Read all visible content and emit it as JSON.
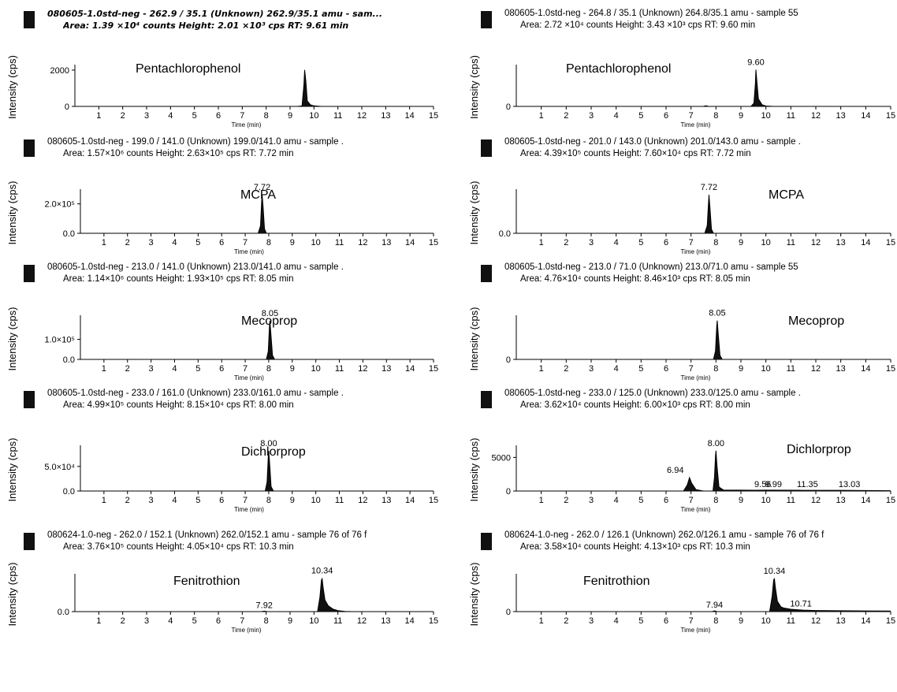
{
  "panels": [
    {
      "id": "p1",
      "bold": true,
      "header1": "080605-1.0std-neg - 262.9 / 35.1 (Unknown) 262.9/35.1 amu - sam...",
      "header2": "Area: 1.39 ×10⁴ counts  Height: 2.01 ×10³ cps  RT: 9.61 min",
      "compound": "Pentachlorophenol",
      "ylabel": "Intensity (cps)",
      "xlabel": "Time (min)",
      "yticks": [
        "2000",
        "0"
      ],
      "peak_labels": []
    },
    {
      "id": "p2",
      "bold": false,
      "header1": "080605-1.0std-neg - 264.8 / 35.1 (Unknown) 264.8/35.1 amu - sample 55",
      "header2": "Area: 2.72 ×10⁴ counts  Height: 3.43 ×10³ cps  RT: 9.60 min",
      "compound": "Pentachlorophenol",
      "ylabel": "Intensity (cps)",
      "xlabel": "Time (min)",
      "yticks": [
        "0"
      ],
      "peak_labels": [
        "9.60"
      ]
    },
    {
      "id": "p3",
      "bold": false,
      "header1": "080605-1.0std-neg - 199.0 / 141.0 (Unknown) 199.0/141.0 amu - sample .",
      "header2": "Area: 1.57×10⁶ counts  Height: 2.63×10⁵ cps  RT: 7.72 min",
      "compound": "MCPA",
      "ylabel": "Intensity (cps)",
      "xlabel": "Time (min)",
      "yticks": [
        "2.0×10⁵",
        "0.0"
      ],
      "peak_labels": [
        "7.72"
      ]
    },
    {
      "id": "p4",
      "bold": false,
      "header1": "080605-1.0std-neg - 201.0 / 143.0 (Unknown) 201.0/143.0 amu - sample .",
      "header2": "Area: 4.39×10⁵ counts  Height: 7.60×10⁴ cps  RT: 7.72 min",
      "compound": "MCPA",
      "ylabel": "Intensity (cps)",
      "xlabel": "Time (min)",
      "yticks": [
        "0.0"
      ],
      "peak_labels": [
        "7.72"
      ]
    },
    {
      "id": "p5",
      "bold": false,
      "header1": "080605-1.0std-neg - 213.0 / 141.0 (Unknown) 213.0/141.0 amu - sample .",
      "header2": "Area: 1.14×10⁶ counts  Height: 1.93×10⁵ cps  RT: 8.05 min",
      "compound": "Mecoprop",
      "ylabel": "Intensity (cps)",
      "xlabel": "Time (min)",
      "yticks": [
        "1.0×10⁵",
        "0.0"
      ],
      "peak_labels": [
        "8.05"
      ]
    },
    {
      "id": "p6",
      "bold": false,
      "header1": "080605-1.0std-neg - 213.0 / 71.0 (Unknown) 213.0/71.0 amu - sample 55",
      "header2": "Area: 4.76×10⁴ counts  Height: 8.46×10³ cps  RT: 8.05 min",
      "compound": "Mecoprop",
      "ylabel": "Intensity (cps)",
      "xlabel": "Time (min)",
      "yticks": [
        "0"
      ],
      "peak_labels": [
        "8.05"
      ]
    },
    {
      "id": "p7",
      "bold": false,
      "header1": "080605-1.0std-neg - 233.0 / 161.0 (Unknown) 233.0/161.0 amu - sample .",
      "header2": "Area: 4.99×10⁵ counts  Height: 8.15×10⁴ cps  RT: 8.00 min",
      "compound": "Dichlorprop",
      "ylabel": "Intensity (cps)",
      "xlabel": "Time (min)",
      "yticks": [
        "5.0×10⁴",
        "0.0"
      ],
      "peak_labels": [
        "8.00"
      ]
    },
    {
      "id": "p8",
      "bold": false,
      "header1": "080605-1.0std-neg - 233.0 / 125.0 (Unknown) 233.0/125.0 amu - sample .",
      "header2": "Area: 3.62×10⁴ counts  Height: 6.00×10³ cps  RT: 8.00 min",
      "compound": "Dichlorprop",
      "ylabel": "Intensity (cps)",
      "xlabel": "Time (min)",
      "yticks": [
        "5000",
        "0"
      ],
      "peak_labels": [
        "8.00",
        "6.94",
        "9.56",
        "9.99",
        "11.35",
        "13.03"
      ]
    },
    {
      "id": "p9",
      "bold": false,
      "header1": "080624-1.0-neg - 262.0 / 152.1 (Unknown) 262.0/152.1 amu - sample 76 of 76 f",
      "header2": "Area: 3.76×10⁵ counts  Height: 4.05×10⁴ cps  RT: 10.3 min",
      "compound": "Fenitrothion",
      "ylabel": "Intensity (cps)",
      "xlabel": "Time (min)",
      "yticks": [
        "0.0"
      ],
      "peak_labels": [
        "10.34",
        "7.92"
      ]
    },
    {
      "id": "p10",
      "bold": false,
      "header1": "080624-1.0-neg - 262.0 / 126.1 (Unknown) 262.0/126.1 amu - sample 76 of 76 f",
      "header2": "Area: 3.58×10⁴ counts  Height: 4.13×10³ cps  RT: 10.3 min",
      "compound": "Fenitrothion",
      "ylabel": "Intensity (cps)",
      "xlabel": "Time (min)",
      "yticks": [
        "0"
      ],
      "peak_labels": [
        "10.34",
        "7.94",
        "10.71"
      ]
    }
  ],
  "xtick_labels": [
    "1",
    "2",
    "3",
    "4",
    "5",
    "6",
    "7",
    "8",
    "9",
    "10",
    "11",
    "12",
    "13",
    "14",
    "15"
  ],
  "chart_data": [
    {
      "type": "line",
      "xlabel": "Time (min)",
      "ylabel": "Intensity (cps)",
      "xlim": [
        0,
        15
      ],
      "ylim": [
        0,
        2300
      ],
      "series": [
        {
          "values": [
            [
              0,
              0
            ],
            [
              9.3,
              0
            ],
            [
              9.5,
              30
            ],
            [
              9.58,
              1200
            ],
            [
              9.61,
              2010
            ],
            [
              9.66,
              1400
            ],
            [
              9.72,
              300
            ],
            [
              9.85,
              90
            ],
            [
              10.0,
              30
            ],
            [
              10.3,
              0
            ],
            [
              15,
              0
            ]
          ]
        }
      ]
    },
    {
      "type": "line",
      "xlabel": "Time (min)",
      "ylabel": "Intensity (cps)",
      "xlim": [
        0,
        15
      ],
      "ylim": [
        0,
        3900
      ],
      "series": [
        {
          "values": [
            [
              0,
              0
            ],
            [
              7.5,
              0
            ],
            [
              7.6,
              60
            ],
            [
              7.7,
              0
            ],
            [
              9.4,
              0
            ],
            [
              9.52,
              300
            ],
            [
              9.58,
              2200
            ],
            [
              9.6,
              3430
            ],
            [
              9.64,
              2300
            ],
            [
              9.7,
              700
            ],
            [
              9.85,
              150
            ],
            [
              10.0,
              40
            ],
            [
              10.3,
              0
            ],
            [
              15,
              0
            ]
          ]
        }
      ]
    },
    {
      "type": "line",
      "xlabel": "Time (min)",
      "ylabel": "Intensity (cps)",
      "xlim": [
        0,
        15
      ],
      "ylim": [
        0,
        300000
      ],
      "series": [
        {
          "values": [
            [
              0,
              0
            ],
            [
              7.55,
              0
            ],
            [
              7.65,
              50000
            ],
            [
              7.7,
              220000
            ],
            [
              7.72,
              263000
            ],
            [
              7.76,
              180000
            ],
            [
              7.82,
              30000
            ],
            [
              7.9,
              0
            ],
            [
              15,
              0
            ]
          ]
        }
      ]
    },
    {
      "type": "line",
      "xlabel": "Time (min)",
      "ylabel": "Intensity (cps)",
      "xlim": [
        0,
        15
      ],
      "ylim": [
        0,
        87000
      ],
      "series": [
        {
          "values": [
            [
              0,
              0
            ],
            [
              7.55,
              0
            ],
            [
              7.65,
              15000
            ],
            [
              7.7,
              60000
            ],
            [
              7.72,
              76000
            ],
            [
              7.76,
              50000
            ],
            [
              7.82,
              8000
            ],
            [
              7.9,
              0
            ],
            [
              15,
              0
            ]
          ]
        }
      ]
    },
    {
      "type": "line",
      "xlabel": "Time (min)",
      "ylabel": "Intensity (cps)",
      "xlim": [
        0,
        15
      ],
      "ylim": [
        0,
        220000
      ],
      "series": [
        {
          "values": [
            [
              0,
              0
            ],
            [
              7.9,
              0
            ],
            [
              7.98,
              40000
            ],
            [
              8.03,
              165000
            ],
            [
              8.05,
              193000
            ],
            [
              8.09,
              130000
            ],
            [
              8.16,
              20000
            ],
            [
              8.25,
              0
            ],
            [
              15,
              0
            ]
          ]
        }
      ]
    },
    {
      "type": "line",
      "xlabel": "Time (min)",
      "ylabel": "Intensity (cps)",
      "xlim": [
        0,
        15
      ],
      "ylim": [
        0,
        9600
      ],
      "series": [
        {
          "values": [
            [
              0,
              0
            ],
            [
              7.9,
              0
            ],
            [
              7.98,
              1800
            ],
            [
              8.03,
              7200
            ],
            [
              8.05,
              8460
            ],
            [
              8.09,
              5600
            ],
            [
              8.16,
              900
            ],
            [
              8.25,
              0
            ],
            [
              15,
              0
            ]
          ]
        }
      ]
    },
    {
      "type": "line",
      "xlabel": "Time (min)",
      "ylabel": "Intensity (cps)",
      "xlim": [
        0,
        15
      ],
      "ylim": [
        0,
        93000
      ],
      "series": [
        {
          "values": [
            [
              0,
              0
            ],
            [
              7.85,
              0
            ],
            [
              7.93,
              18000
            ],
            [
              7.98,
              70000
            ],
            [
              8.0,
              81500
            ],
            [
              8.04,
              55000
            ],
            [
              8.1,
              9000
            ],
            [
              8.2,
              0
            ],
            [
              15,
              0
            ]
          ]
        }
      ]
    },
    {
      "type": "line",
      "xlabel": "Time (min)",
      "ylabel": "Intensity (cps)",
      "xlim": [
        0,
        15
      ],
      "ylim": [
        0,
        6800
      ],
      "series": [
        {
          "values": [
            [
              0,
              0
            ],
            [
              6.7,
              0
            ],
            [
              6.85,
              900
            ],
            [
              6.94,
              2000
            ],
            [
              7.02,
              1200
            ],
            [
              7.2,
              200
            ],
            [
              7.5,
              0
            ],
            [
              7.88,
              0
            ],
            [
              7.94,
              2000
            ],
            [
              7.98,
              5200
            ],
            [
              8.0,
              6000
            ],
            [
              8.04,
              3800
            ],
            [
              8.12,
              600
            ],
            [
              8.3,
              150
            ],
            [
              9.56,
              120
            ],
            [
              9.99,
              130
            ],
            [
              11.35,
              110
            ],
            [
              13.03,
              100
            ],
            [
              14.5,
              60
            ],
            [
              15,
              40
            ]
          ]
        }
      ]
    },
    {
      "type": "line",
      "xlabel": "Time (min)",
      "ylabel": "Intensity (cps)",
      "xlim": [
        0,
        15
      ],
      "ylim": [
        0,
        46000
      ],
      "series": [
        {
          "values": [
            [
              0,
              0
            ],
            [
              7.8,
              0
            ],
            [
              7.92,
              600
            ],
            [
              8.05,
              0
            ],
            [
              10.15,
              0
            ],
            [
              10.25,
              18000
            ],
            [
              10.31,
              38000
            ],
            [
              10.34,
              40500
            ],
            [
              10.38,
              30000
            ],
            [
              10.46,
              14000
            ],
            [
              10.6,
              7000
            ],
            [
              10.8,
              3000
            ],
            [
              11.0,
              1200
            ],
            [
              11.3,
              300
            ],
            [
              11.6,
              0
            ],
            [
              15,
              0
            ]
          ]
        }
      ]
    },
    {
      "type": "line",
      "xlabel": "Time (min)",
      "ylabel": "Intensity (cps)",
      "xlim": [
        0,
        15
      ],
      "ylim": [
        0,
        4700
      ],
      "series": [
        {
          "values": [
            [
              0,
              0
            ],
            [
              7.85,
              0
            ],
            [
              7.94,
              90
            ],
            [
              8.05,
              0
            ],
            [
              10.15,
              0
            ],
            [
              10.25,
              1900
            ],
            [
              10.31,
              3900
            ],
            [
              10.34,
              4130
            ],
            [
              10.38,
              3000
            ],
            [
              10.46,
              1300
            ],
            [
              10.6,
              600
            ],
            [
              10.71,
              450
            ],
            [
              11.0,
              300
            ],
            [
              11.5,
              180
            ],
            [
              12.0,
              140
            ],
            [
              13.0,
              110
            ],
            [
              14.0,
              90
            ],
            [
              15,
              70
            ]
          ]
        }
      ]
    }
  ]
}
